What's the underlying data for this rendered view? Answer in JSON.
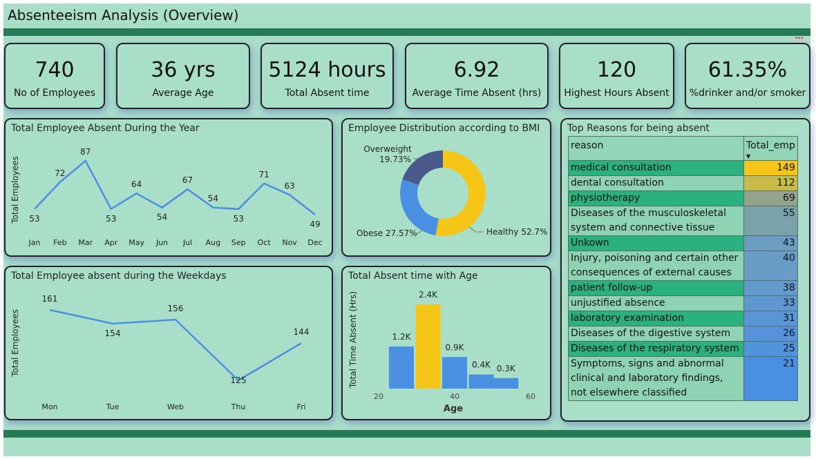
{
  "header": {
    "title": "Absenteeism Analysis (Overview)",
    "more_label": "•••"
  },
  "kpis": [
    {
      "value": "740",
      "label": "No of Employees"
    },
    {
      "value": "36 yrs",
      "label": "Average Age"
    },
    {
      "value": "5124 hours",
      "label": "Total Absent time"
    },
    {
      "value": "6.92",
      "label": "Average Time Absent (hrs)"
    },
    {
      "value": "120",
      "label": "Highest Hours Absent"
    },
    {
      "value": "61.35%",
      "label": "%drinker and/or smoker"
    }
  ],
  "colors": {
    "line": "#4a90e2",
    "bar_blue": "#4a90e2",
    "bar_highlight": "#f5c518",
    "bmi_healthy": "#f5c518",
    "bmi_obese": "#4a90e2",
    "bmi_overweight": "#4a5a8a"
  },
  "chart_data": [
    {
      "type": "line",
      "title": "Total Employee Absent During the Year",
      "ylabel": "Total Employees",
      "categories": [
        "Jan",
        "Feb",
        "Mar",
        "Apr",
        "May",
        "Jun",
        "Jul",
        "Aug",
        "Sep",
        "Oct",
        "Nov",
        "Dec"
      ],
      "values": [
        53,
        72,
        87,
        53,
        64,
        54,
        67,
        54,
        53,
        71,
        63,
        49
      ]
    },
    {
      "type": "pie",
      "title": "Employee Distribution according to BMI",
      "slices": [
        {
          "name": "Healthy",
          "value": 52.7,
          "label": "Healthy 52.7%"
        },
        {
          "name": "Obese",
          "value": 27.57,
          "label": "Obese 27.57%"
        },
        {
          "name": "Overweight",
          "value": 19.73,
          "label_line1": "Overweight",
          "label_line2": "19.73%"
        }
      ]
    },
    {
      "type": "line",
      "title": "Total Employee absent during the Weekdays",
      "ylabel": "Total Employees",
      "categories": [
        "Mon",
        "Tue",
        "Web",
        "Thu",
        "Fri"
      ],
      "values": [
        161,
        154,
        156,
        125,
        144
      ]
    },
    {
      "type": "bar",
      "title": "Total Absent time with Age",
      "xlabel": "Age",
      "ylabel": "Total Time Absent (Hrs)",
      "x_ticks": [
        "20",
        "40",
        "60"
      ],
      "xlim": [
        20,
        60
      ],
      "bars": [
        {
          "x_center": 26,
          "value": 1200,
          "label": "1.2K",
          "highlight": false
        },
        {
          "x_center": 33,
          "value": 2400,
          "label": "2.4K",
          "highlight": true
        },
        {
          "x_center": 40,
          "value": 900,
          "label": "0.9K",
          "highlight": false
        },
        {
          "x_center": 47,
          "value": 400,
          "label": "0.4K",
          "highlight": false
        },
        {
          "x_center": 53.5,
          "value": 300,
          "label": "0.3K",
          "highlight": false
        }
      ]
    },
    {
      "type": "table",
      "title": "Top Reasons for being absent",
      "columns": [
        "reason",
        "Total_emp"
      ],
      "rows": [
        {
          "reason": "medical consultation",
          "total": 149,
          "cell_color": "#f5c518"
        },
        {
          "reason": "dental consultation",
          "total": 112,
          "cell_color": "#c8bb48"
        },
        {
          "reason": "physiotherapy",
          "total": 69,
          "cell_color": "#92a58c"
        },
        {
          "reason": "Diseases of the musculoskeletal system and connective tissue",
          "total": 55,
          "cell_color": "#7aa2aa"
        },
        {
          "reason": "Unkown",
          "total": 43,
          "cell_color": "#6b9dc2"
        },
        {
          "reason": "Injury, poisoning and certain other consequences of external causes",
          "total": 40,
          "cell_color": "#689cc6"
        },
        {
          "reason": "patient follow-up",
          "total": 38,
          "cell_color": "#639acc"
        },
        {
          "reason": "unjustified absence",
          "total": 33,
          "cell_color": "#5d98d2"
        },
        {
          "reason": "laboratory examination",
          "total": 31,
          "cell_color": "#5a96d6"
        },
        {
          "reason": "Diseases of the digestive system",
          "total": 26,
          "cell_color": "#5594dc"
        },
        {
          "reason": "Diseases of the respiratory system",
          "total": 25,
          "cell_color": "#5293de"
        },
        {
          "reason": "Symptoms, signs and abnormal clinical and laboratory findings, not elsewhere classified",
          "total": 21,
          "cell_color": "#4a90e2"
        }
      ]
    }
  ]
}
